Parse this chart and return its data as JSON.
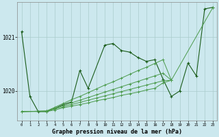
{
  "xlabel": "Graphe pression niveau de la mer (hPa)",
  "bg_color": "#cce8ee",
  "grid_color": "#aacccc",
  "dark_green": "#1a5c1a",
  "light_green": "#4a9a4a",
  "xlim": [
    -0.5,
    23.5
  ],
  "ylim": [
    1019.45,
    1021.65
  ],
  "yticks": [
    1020.0,
    1021.0
  ],
  "hours": [
    0,
    1,
    2,
    3,
    4,
    5,
    6,
    7,
    8,
    9,
    10,
    11,
    12,
    13,
    14,
    15,
    16,
    17,
    18,
    19,
    20,
    21,
    22,
    23
  ],
  "series_main": [
    1021.1,
    1019.9,
    1019.62,
    1019.62,
    1019.68,
    1019.75,
    1019.8,
    1020.38,
    1020.05,
    null,
    1020.85,
    1020.88,
    1020.75,
    1020.72,
    1020.62,
    1020.55,
    1020.58,
    1020.22,
    1019.9,
    1020.0,
    1020.52,
    1020.28,
    1021.52,
    1021.55
  ],
  "series_diag1": [
    1019.62,
    null,
    null,
    1019.63,
    1019.7,
    1019.77,
    1019.84,
    1019.9,
    1019.97,
    1020.04,
    1020.11,
    1020.17,
    1020.24,
    1020.31,
    1020.38,
    1020.44,
    1020.51,
    1020.58,
    1020.2,
    null,
    null,
    null,
    null,
    1021.55
  ],
  "series_diag2": [
    1019.62,
    null,
    null,
    1019.63,
    1019.68,
    1019.73,
    1019.78,
    1019.83,
    1019.88,
    1019.93,
    1019.98,
    1020.03,
    1020.08,
    1020.13,
    1020.18,
    1020.23,
    1020.28,
    1020.33,
    1020.2,
    null,
    null,
    null,
    null,
    null
  ],
  "series_diag3": [
    1019.62,
    null,
    null,
    1019.63,
    1019.67,
    1019.71,
    1019.75,
    1019.79,
    1019.83,
    1019.87,
    1019.91,
    1019.95,
    1019.99,
    1020.03,
    1020.07,
    1020.11,
    1020.15,
    1020.19,
    1020.2,
    null,
    null,
    null,
    null,
    null
  ],
  "series_diag4": [
    1019.62,
    null,
    null,
    1019.62,
    1019.65,
    1019.69,
    1019.72,
    1019.75,
    1019.78,
    1019.82,
    1019.85,
    1019.88,
    1019.92,
    1019.95,
    1019.98,
    1020.02,
    1020.05,
    1020.15,
    1020.2,
    null,
    null,
    null,
    null,
    null
  ]
}
